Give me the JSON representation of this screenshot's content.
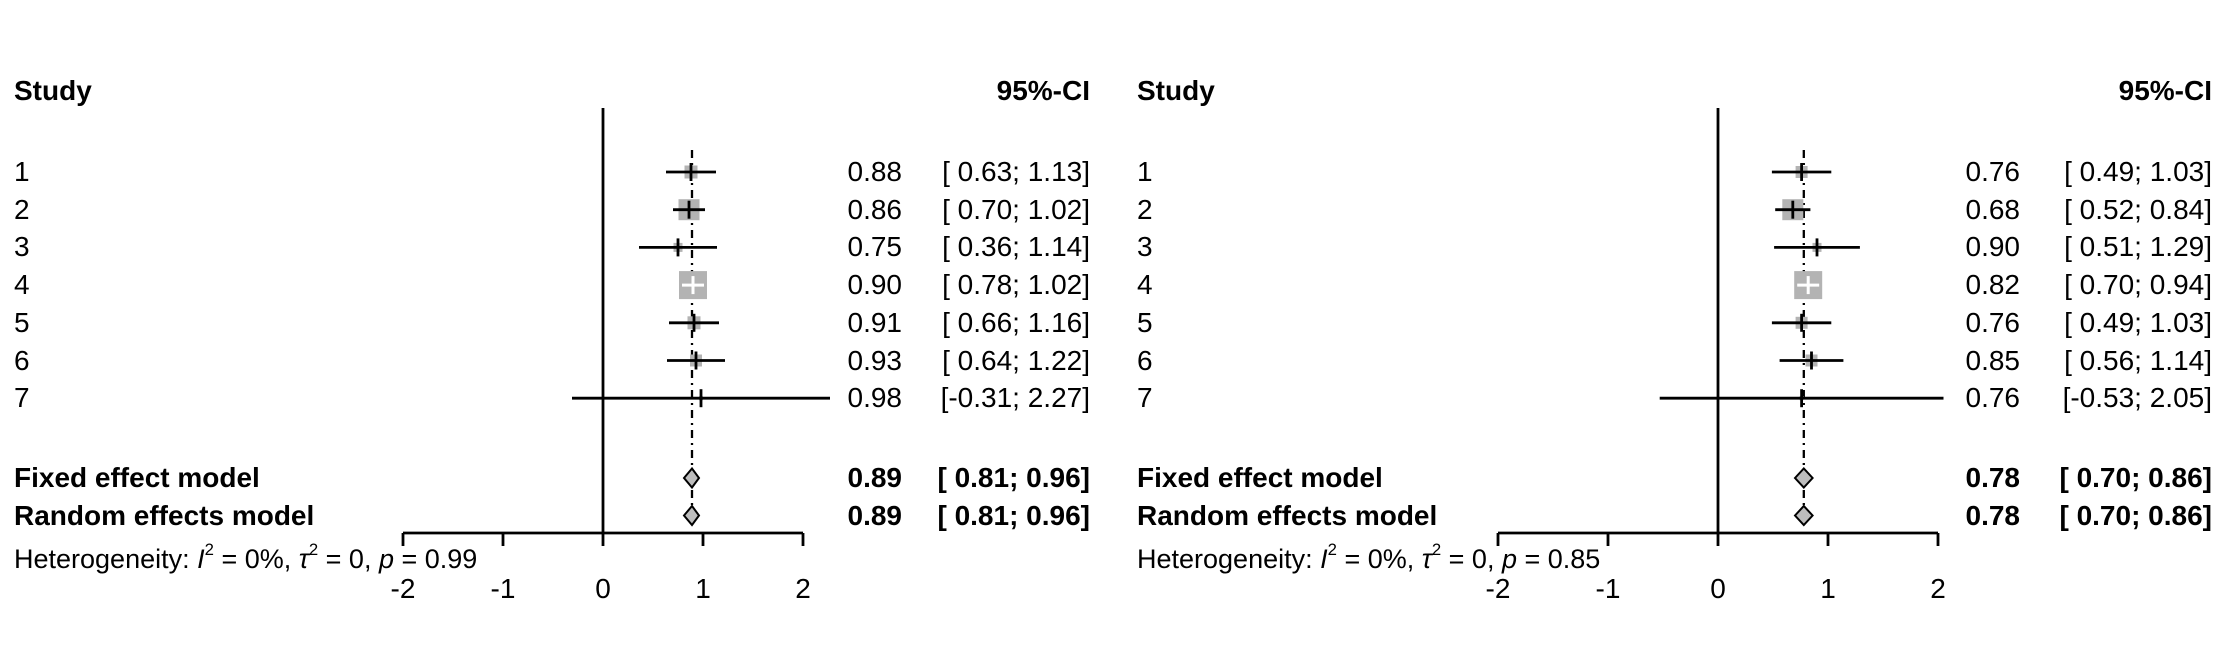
{
  "figure_title": "Forest plots, fixed and random effects meta-analysis, two outcomes",
  "colors": {
    "background": "#ffffff",
    "line": "#000000",
    "square_fill": "#b3b3b3",
    "diamond_fill": "#bdbdbd",
    "text": "#000000"
  },
  "chart_data": [
    {
      "type": "forest",
      "columns": {
        "study": "Study",
        "ci": "95%-CI"
      },
      "x_ticks": [
        -2,
        -1,
        0,
        1,
        2
      ],
      "x_range": [
        -2,
        2
      ],
      "pooled_line_at": 0.89,
      "studies": [
        {
          "label": "1",
          "estimate": 0.88,
          "lo": 0.63,
          "hi": 1.13,
          "estimate_text": "0.88",
          "ci_text": "[ 0.63; 1.13]",
          "size": 13
        },
        {
          "label": "2",
          "estimate": 0.86,
          "lo": 0.7,
          "hi": 1.02,
          "estimate_text": "0.86",
          "ci_text": "[ 0.70; 1.02]",
          "size": 21
        },
        {
          "label": "3",
          "estimate": 0.75,
          "lo": 0.36,
          "hi": 1.14,
          "estimate_text": "0.75",
          "ci_text": "[ 0.36; 1.14]",
          "size": 9
        },
        {
          "label": "4",
          "estimate": 0.9,
          "lo": 0.78,
          "hi": 1.02,
          "estimate_text": "0.90",
          "ci_text": "[ 0.78; 1.02]",
          "size": 28
        },
        {
          "label": "5",
          "estimate": 0.91,
          "lo": 0.66,
          "hi": 1.16,
          "estimate_text": "0.91",
          "ci_text": "[ 0.66; 1.16]",
          "size": 13
        },
        {
          "label": "6",
          "estimate": 0.93,
          "lo": 0.64,
          "hi": 1.22,
          "estimate_text": "0.93",
          "ci_text": "[ 0.64; 1.22]",
          "size": 12
        },
        {
          "label": "7",
          "estimate": 0.98,
          "lo": -0.31,
          "hi": 2.27,
          "estimate_text": "0.98",
          "ci_text": "[-0.31; 2.27]",
          "size": 4
        }
      ],
      "fixed": {
        "label": "Fixed effect model",
        "estimate": 0.89,
        "lo": 0.81,
        "hi": 0.96,
        "estimate_text": "0.89",
        "ci_text": "[ 0.81; 0.96]"
      },
      "random": {
        "label": "Random effects model",
        "estimate": 0.89,
        "lo": 0.81,
        "hi": 0.96,
        "estimate_text": "0.89",
        "ci_text": "[ 0.81; 0.96]"
      },
      "heterogeneity": [
        {
          "t": "Heterogeneity: "
        },
        {
          "t": "I",
          "i": true
        },
        {
          "t": "2",
          "sup": true
        },
        {
          "t": " = 0%, "
        },
        {
          "t": "τ",
          "i": true
        },
        {
          "t": "2",
          "sup": true
        },
        {
          "t": " = 0, "
        },
        {
          "t": "p",
          "i": true
        },
        {
          "t": " = 0.99"
        }
      ]
    },
    {
      "type": "forest",
      "columns": {
        "study": "Study",
        "ci": "95%-CI"
      },
      "x_ticks": [
        -2,
        -1,
        0,
        1,
        2
      ],
      "x_range": [
        -2,
        2
      ],
      "pooled_line_at": 0.78,
      "studies": [
        {
          "label": "1",
          "estimate": 0.76,
          "lo": 0.49,
          "hi": 1.03,
          "estimate_text": "0.76",
          "ci_text": "[ 0.49; 1.03]",
          "size": 12
        },
        {
          "label": "2",
          "estimate": 0.68,
          "lo": 0.52,
          "hi": 0.84,
          "estimate_text": "0.68",
          "ci_text": "[ 0.52; 0.84]",
          "size": 21
        },
        {
          "label": "3",
          "estimate": 0.9,
          "lo": 0.51,
          "hi": 1.29,
          "estimate_text": "0.90",
          "ci_text": "[ 0.51; 1.29]",
          "size": 9
        },
        {
          "label": "4",
          "estimate": 0.82,
          "lo": 0.7,
          "hi": 0.94,
          "estimate_text": "0.82",
          "ci_text": "[ 0.70; 0.94]",
          "size": 28
        },
        {
          "label": "5",
          "estimate": 0.76,
          "lo": 0.49,
          "hi": 1.03,
          "estimate_text": "0.76",
          "ci_text": "[ 0.49; 1.03]",
          "size": 12
        },
        {
          "label": "6",
          "estimate": 0.85,
          "lo": 0.56,
          "hi": 1.14,
          "estimate_text": "0.85",
          "ci_text": "[ 0.56; 1.14]",
          "size": 12
        },
        {
          "label": "7",
          "estimate": 0.76,
          "lo": -0.53,
          "hi": 2.05,
          "estimate_text": "0.76",
          "ci_text": "[-0.53; 2.05]",
          "size": 4
        }
      ],
      "fixed": {
        "label": "Fixed effect model",
        "estimate": 0.78,
        "lo": 0.7,
        "hi": 0.86,
        "estimate_text": "0.78",
        "ci_text": "[ 0.70; 0.86]"
      },
      "random": {
        "label": "Random effects model",
        "estimate": 0.78,
        "lo": 0.7,
        "hi": 0.86,
        "estimate_text": "0.78",
        "ci_text": "[ 0.70; 0.86]"
      },
      "heterogeneity": [
        {
          "t": "Heterogeneity: "
        },
        {
          "t": "I",
          "i": true
        },
        {
          "t": "2",
          "sup": true
        },
        {
          "t": " = 0%, "
        },
        {
          "t": "τ",
          "i": true
        },
        {
          "t": "2",
          "sup": true
        },
        {
          "t": " = 0, "
        },
        {
          "t": "p",
          "i": true
        },
        {
          "t": " = 0.85"
        }
      ]
    }
  ]
}
